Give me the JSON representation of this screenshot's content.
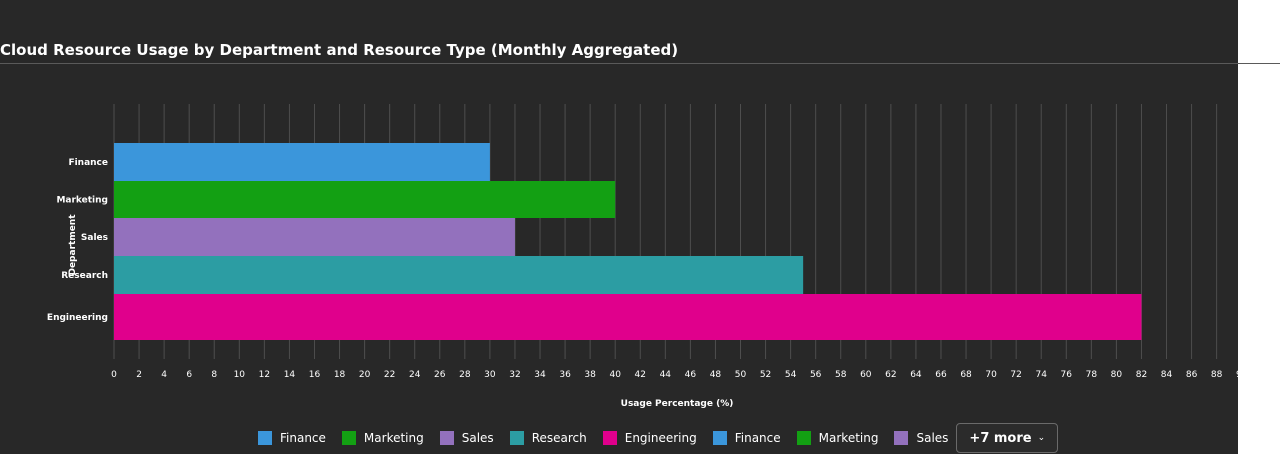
{
  "chart_data": {
    "type": "bar",
    "orientation": "horizontal",
    "title": "Cloud Resource Usage by Department and Resource Type (Monthly Aggregated)",
    "xlabel": "Usage Percentage (%)",
    "ylabel": "Department",
    "categories": [
      "Finance",
      "Marketing",
      "Sales",
      "Research",
      "Engineering"
    ],
    "values": [
      30,
      40,
      32,
      55,
      82
    ],
    "colors": [
      "#3b96db",
      "#13a013",
      "#9371bd",
      "#2c9da3",
      "#e0008c"
    ],
    "xlim": [
      0,
      90
    ],
    "x_tick_step": 2,
    "grid": true,
    "legend_position": "bottom"
  },
  "legend": {
    "items": [
      {
        "label": "Finance",
        "color": "#3b96db"
      },
      {
        "label": "Marketing",
        "color": "#13a013"
      },
      {
        "label": "Sales",
        "color": "#9371bd"
      },
      {
        "label": "Research",
        "color": "#2c9da3"
      },
      {
        "label": "Engineering",
        "color": "#e0008c"
      },
      {
        "label": "Finance",
        "color": "#3b96db"
      },
      {
        "label": "Marketing",
        "color": "#13a013"
      },
      {
        "label": "Sales",
        "color": "#9371bd"
      }
    ],
    "more_label": "+7 more",
    "more_icon": "chevron-down-icon"
  }
}
